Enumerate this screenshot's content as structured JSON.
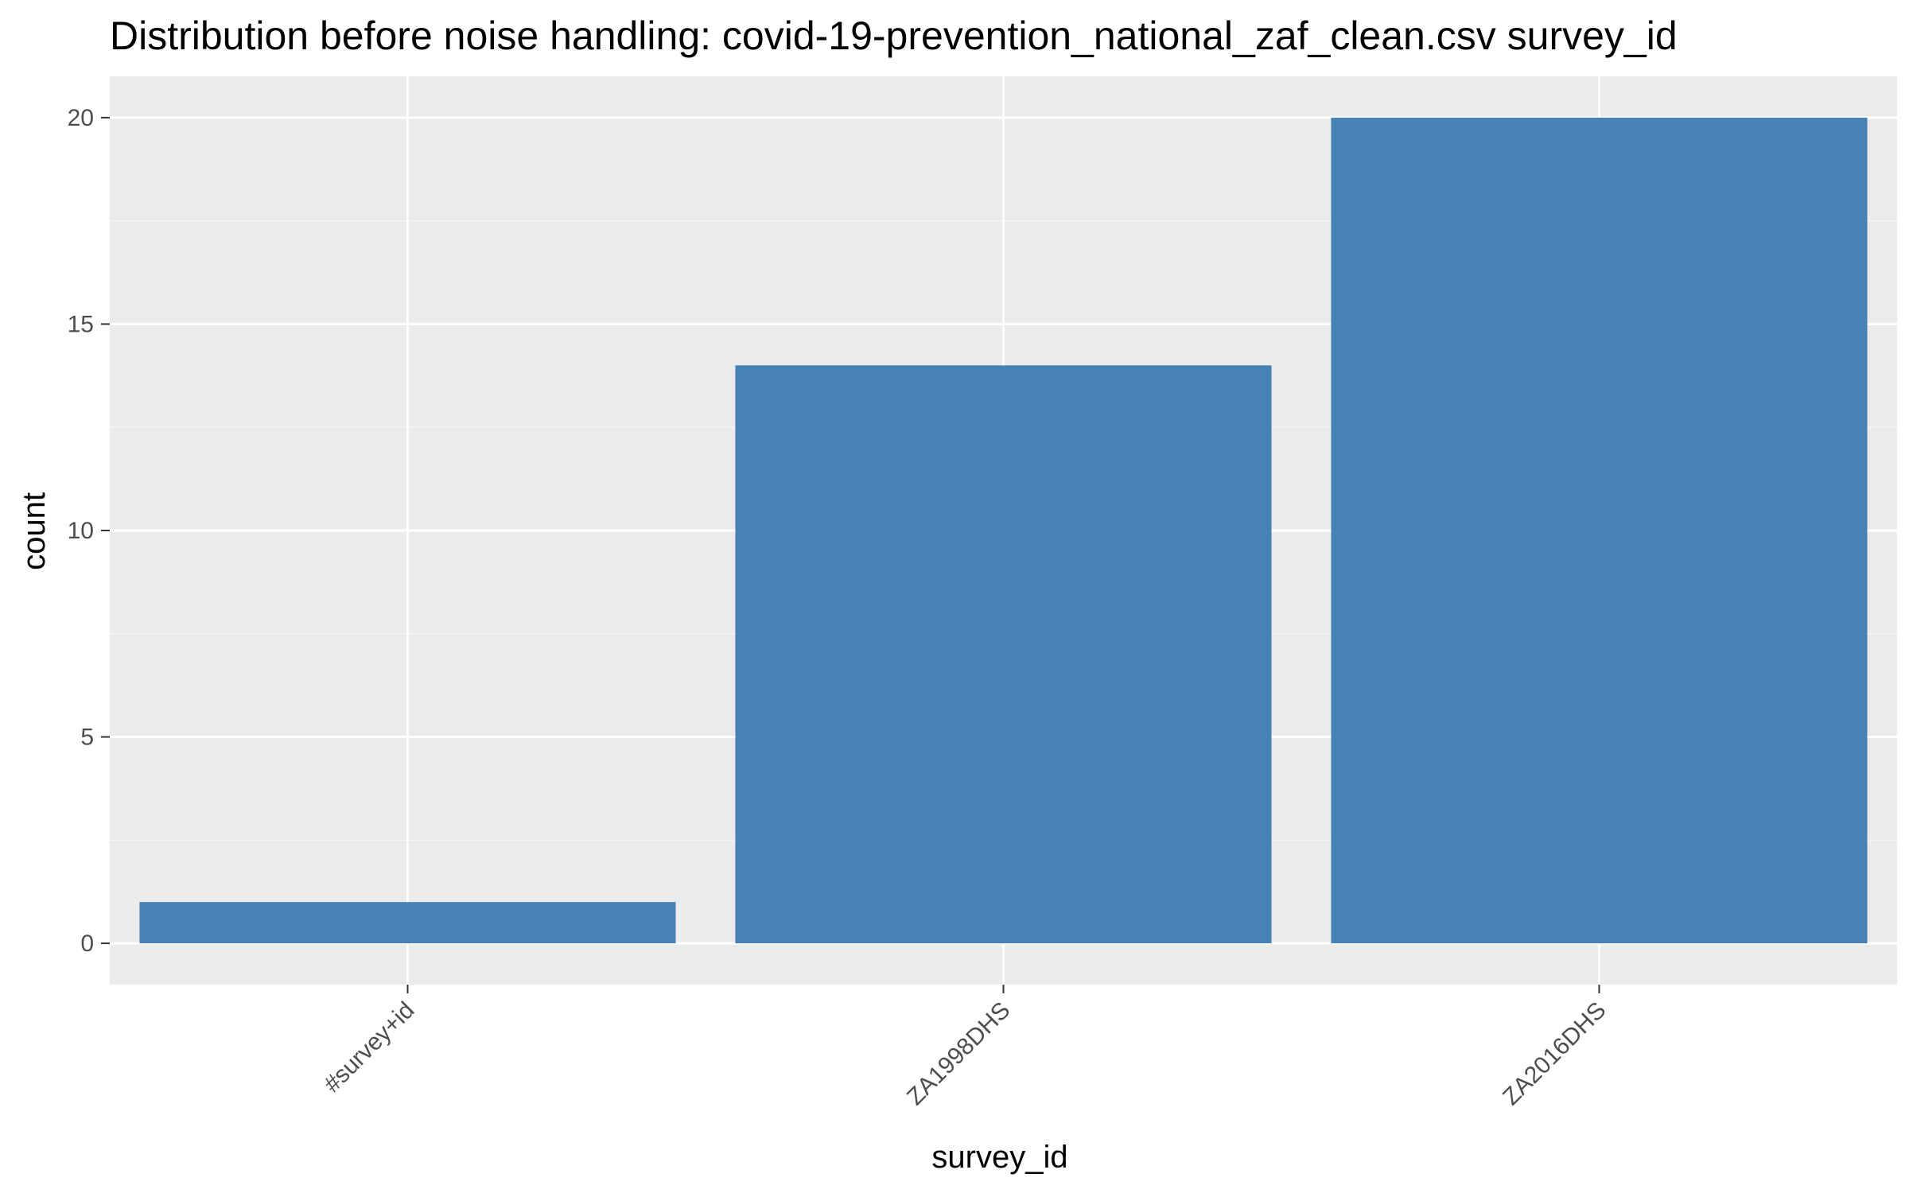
{
  "chart_data": {
    "type": "bar",
    "title": "Distribution before noise handling: covid-19-prevention_national_zaf_clean.csv survey_id",
    "xlabel": "survey_id",
    "ylabel": "count",
    "categories": [
      "#survey+id",
      "ZA1998DHS",
      "ZA2016DHS"
    ],
    "values": [
      1,
      14,
      20
    ],
    "ylim": [
      -1,
      21
    ],
    "yticks": [
      0,
      5,
      10,
      15,
      20
    ],
    "grid": true,
    "x_tick_rotation_deg": 45,
    "legend": "none",
    "colors": {
      "bar": "#4682b4",
      "panel_background": "#ebebeb",
      "grid_major": "#ffffff",
      "grid_minor": "#f5f5f5",
      "tick_text": "#4d4d4d",
      "text": "#000000"
    }
  }
}
